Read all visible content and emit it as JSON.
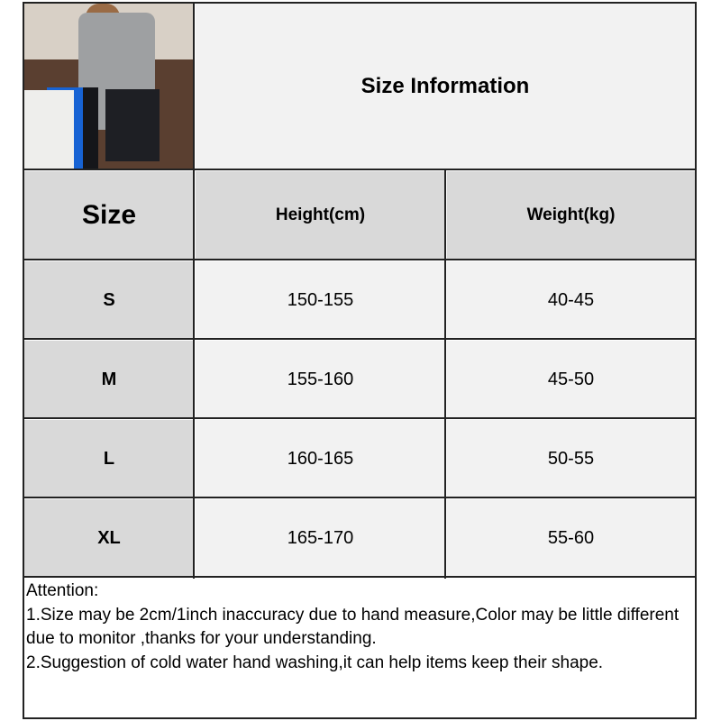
{
  "title": "Size Information",
  "headers": {
    "size": "Size",
    "height": "Height(cm)",
    "weight": "Weight(kg)"
  },
  "rows": [
    {
      "size": "S",
      "height": "150-155",
      "weight": "40-45"
    },
    {
      "size": "M",
      "height": "155-160",
      "weight": "45-50"
    },
    {
      "size": "L",
      "height": "160-165",
      "weight": "50-55"
    },
    {
      "size": "XL",
      "height": "165-170",
      "weight": "55-60"
    }
  ],
  "notes": {
    "heading": "Attention:",
    "line1": "1.Size may be 2cm/1inch inaccuracy due to hand measure,Color may be little different due to monitor ,thanks for your understanding.",
    "line2": "2.Suggestion of cold water hand washing,it can help items keep their shape."
  },
  "colors": {
    "header_bg": "#d9d9d9",
    "cell_bg": "#f2f2f2",
    "border": "#222222"
  }
}
